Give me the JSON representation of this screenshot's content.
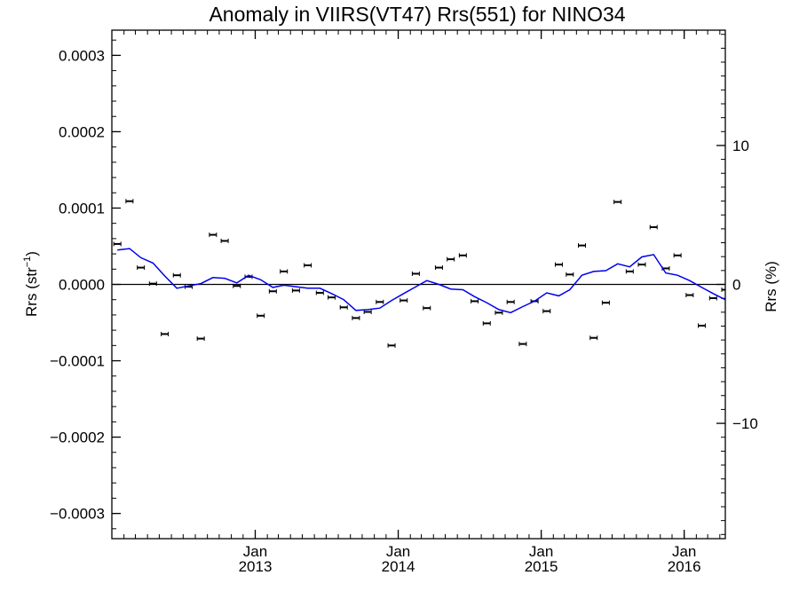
{
  "chart_data": {
    "type": "scatter",
    "title": "Anomaly in VIIRS(VT47) Rrs(551) for NINO34",
    "ylabel": "Rrs (str",
    "ylabel_sup": "−1",
    "ylabel_close": ")",
    "y2label": "Rrs (%)",
    "xlim": [
      "2012-01-01",
      "2016-04-15"
    ],
    "ylim": [
      -0.000333,
      0.000333
    ],
    "y2lim": [
      -18.3,
      18.3
    ],
    "zero_line": true,
    "yticks": [
      -0.0003,
      -0.0002,
      -0.0001,
      0.0,
      0.0001,
      0.0002,
      0.0003
    ],
    "ytick_labels": [
      "−0.0003",
      "−0.0002",
      "−0.0001",
      "0.0000",
      "0.0001",
      "0.0002",
      "0.0003"
    ],
    "y2ticks": [
      -10,
      0,
      10
    ],
    "y2tick_labels": [
      "−10",
      "0",
      "10"
    ],
    "xticks": [
      {
        "date": "2013-01-01",
        "month": "Jan",
        "year": "2013"
      },
      {
        "date": "2014-01-01",
        "month": "Jan",
        "year": "2014"
      },
      {
        "date": "2015-01-01",
        "month": "Jan",
        "year": "2015"
      },
      {
        "date": "2016-01-01",
        "month": "Jan",
        "year": "2016"
      }
    ],
    "series": [
      {
        "type": "points",
        "color": "#000000",
        "x": [
          "2012-01",
          "2012-02",
          "2012-03",
          "2012-04",
          "2012-05",
          "2012-06",
          "2012-07",
          "2012-08",
          "2012-09",
          "2012-10",
          "2012-11",
          "2012-12",
          "2013-01",
          "2013-02",
          "2013-03",
          "2013-04",
          "2013-05",
          "2013-06",
          "2013-07",
          "2013-08",
          "2013-09",
          "2013-10",
          "2013-11",
          "2013-12",
          "2014-01",
          "2014-02",
          "2014-03",
          "2014-04",
          "2014-05",
          "2014-06",
          "2014-07",
          "2014-08",
          "2014-09",
          "2014-10",
          "2014-11",
          "2014-12",
          "2015-01",
          "2015-02",
          "2015-03",
          "2015-04",
          "2015-05",
          "2015-06",
          "2015-07",
          "2015-08",
          "2015-09",
          "2015-10",
          "2015-11",
          "2015-12",
          "2016-01",
          "2016-02",
          "2016-03",
          "2016-04"
        ],
        "y": [
          5.3e-05,
          0.000109,
          2.2e-05,
          1e-06,
          -6.5e-05,
          1.2e-05,
          -3e-06,
          -7.1e-05,
          6.5e-05,
          5.7e-05,
          -2e-06,
          1e-05,
          -4.1e-05,
          -9e-06,
          1.7e-05,
          -8e-06,
          2.5e-05,
          -1.1e-05,
          -1.7e-05,
          -3e-05,
          -4.4e-05,
          -3.6e-05,
          -2.3e-05,
          -8e-05,
          -2.1e-05,
          1.4e-05,
          -3.1e-05,
          2.2e-05,
          3.3e-05,
          3.8e-05,
          -2.2e-05,
          -5.1e-05,
          -3.7e-05,
          -2.3e-05,
          -7.8e-05,
          -2.2e-05,
          -3.5e-05,
          2.6e-05,
          1.3e-05,
          5.1e-05,
          -7e-05,
          -2.4e-05,
          0.000108,
          1.7e-05,
          2.6e-05,
          7.5e-05,
          2.1e-05,
          3.8e-05,
          -1.4e-05,
          -5.4e-05,
          -1.8e-05,
          -7e-06
        ]
      },
      {
        "type": "line",
        "color": "#0000ee",
        "x": [
          "2012-01",
          "2012-02",
          "2012-03",
          "2012-04",
          "2012-05",
          "2012-06",
          "2012-07",
          "2012-08",
          "2012-09",
          "2012-10",
          "2012-11",
          "2012-12",
          "2013-01",
          "2013-02",
          "2013-03",
          "2013-04",
          "2013-05",
          "2013-06",
          "2013-07",
          "2013-08",
          "2013-09",
          "2013-10",
          "2013-11",
          "2013-12",
          "2014-01",
          "2014-02",
          "2014-03",
          "2014-04",
          "2014-05",
          "2014-06",
          "2014-07",
          "2014-08",
          "2014-09",
          "2014-10",
          "2014-11",
          "2014-12",
          "2015-01",
          "2015-02",
          "2015-03",
          "2015-04",
          "2015-05",
          "2015-06",
          "2015-07",
          "2015-08",
          "2015-09",
          "2015-10",
          "2015-11",
          "2015-12",
          "2016-01",
          "2016-02",
          "2016-03",
          "2016-04"
        ],
        "y": [
          4.5e-05,
          4.7e-05,
          3.5e-05,
          2.8e-05,
          1.1e-05,
          -5e-06,
          -2e-06,
          1e-06,
          9e-06,
          8e-06,
          2e-06,
          1.2e-05,
          6e-06,
          -4e-06,
          -1e-06,
          -3e-06,
          -5e-06,
          -5e-06,
          -1.2e-05,
          -2e-05,
          -3.4e-05,
          -3.3e-05,
          -3.1e-05,
          -2.1e-05,
          -1.2e-05,
          -3e-06,
          5e-06,
          0.0,
          -6e-06,
          -7e-06,
          -1.6e-05,
          -2.4e-05,
          -3.3e-05,
          -3.7e-05,
          -2.9e-05,
          -2.2e-05,
          -1.1e-05,
          -1.5e-05,
          -7e-06,
          1.2e-05,
          1.7e-05,
          1.8e-05,
          2.7e-05,
          2.3e-05,
          3.6e-05,
          3.9e-05,
          1.5e-05,
          1.2e-05,
          5e-06,
          -4e-06,
          -1.2e-05,
          -2e-05
        ]
      }
    ]
  }
}
